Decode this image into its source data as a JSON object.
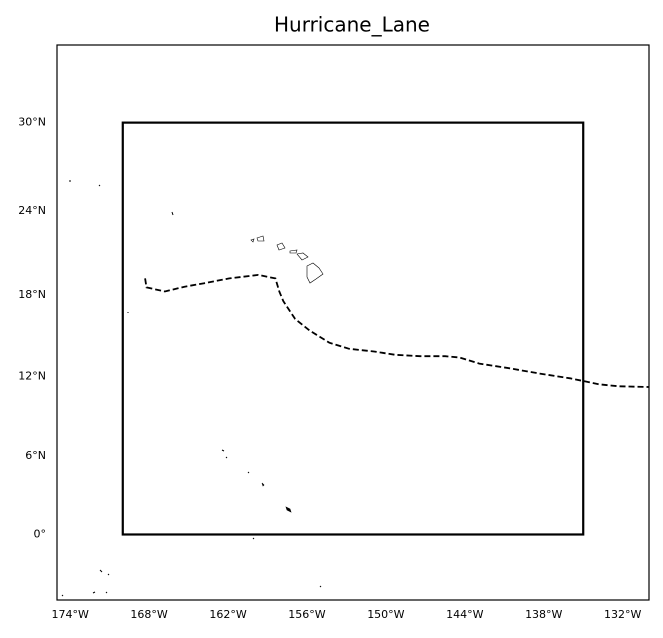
{
  "chart_data": {
    "type": "map",
    "title": "Hurricane_Lane",
    "projection": "mercator",
    "xlim": [
      -175,
      -130
    ],
    "ylim": [
      -5,
      35
    ],
    "xticks": [
      {
        "value": -174,
        "label": "174°W"
      },
      {
        "value": -168,
        "label": "168°W"
      },
      {
        "value": -162,
        "label": "162°W"
      },
      {
        "value": -156,
        "label": "156°W"
      },
      {
        "value": -150,
        "label": "150°W"
      },
      {
        "value": -144,
        "label": "144°W"
      },
      {
        "value": -138,
        "label": "138°W"
      },
      {
        "value": -132,
        "label": "132°W"
      }
    ],
    "yticks": [
      {
        "value": 0,
        "label": "0°"
      },
      {
        "value": 6,
        "label": "6°N"
      },
      {
        "value": 12,
        "label": "12°N"
      },
      {
        "value": 18,
        "label": "18°N"
      },
      {
        "value": 24,
        "label": "24°N"
      },
      {
        "value": 30,
        "label": "30°N"
      }
    ],
    "box": {
      "lon": [
        -170,
        -135
      ],
      "lat": [
        0,
        30
      ]
    },
    "track": {
      "lon": [
        -168.3,
        -168.2,
        -166.8,
        -165.3,
        -163.8,
        -161.9,
        -159.7,
        -158.4,
        -158.1,
        -157.8,
        -156.9,
        -155.8,
        -154.3,
        -152.8,
        -150.9,
        -149.3,
        -147.4,
        -145.5,
        -144.4,
        -142.9,
        -140.6,
        -138.3,
        -136.0,
        -133.8,
        -132.3,
        -130.0
      ],
      "lat": [
        19.2,
        18.55,
        18.25,
        18.6,
        18.85,
        19.2,
        19.45,
        19.2,
        18.25,
        17.55,
        16.25,
        15.4,
        14.5,
        14.05,
        13.85,
        13.6,
        13.5,
        13.5,
        13.4,
        12.95,
        12.6,
        12.2,
        11.85,
        11.4,
        11.25,
        11.2
      ]
    }
  }
}
